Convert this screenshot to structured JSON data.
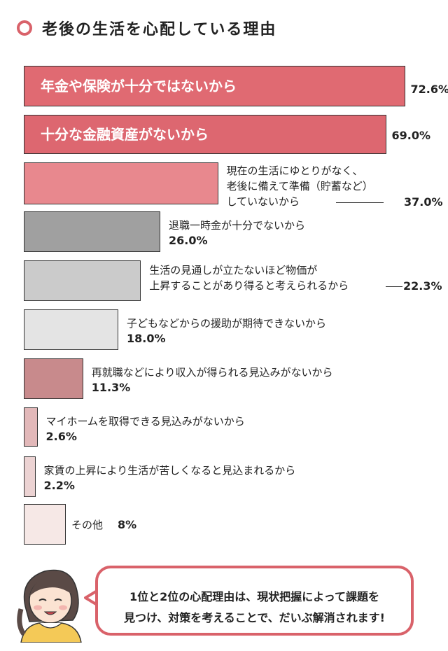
{
  "title": "老後の生活を心配している理由",
  "colors": {
    "accent": "#d9626a",
    "bar_dark_red": "#e06a72",
    "bar_red": "#dd6770",
    "bar_salmon": "#e8888e",
    "bar_dark_gray": "#a0a0a0",
    "bar_mid_gray": "#cbcbcb",
    "bar_light_gray": "#e4e4e4",
    "bar_dusty_rose": "#c88a8c",
    "bar_pale_rose": "#e2b8b9",
    "bar_very_pale_rose": "#ecd3d3",
    "bar_blush": "#f6e8e6"
  },
  "chart_data": {
    "type": "bar",
    "orientation": "horizontal",
    "unit": "%",
    "categories": [
      "年金や保険が十分ではないから",
      "十分な金融資産がないから",
      "現在の生活にゆとりがなく、老後に備えて準備（貯蓄など）していないから",
      "退職一時金が十分でないから",
      "生活の見通しが立たないほど物価が上昇することがあり得ると考えられるから",
      "子どもなどからの援助が期待できないから",
      "再就職などにより収入が得られる見込みがないから",
      "マイホームを取得できる見込みがないから",
      "家賃の上昇により生活が苦しくなると見込まれるから",
      "その他"
    ],
    "values": [
      72.6,
      69.0,
      37.0,
      26.0,
      22.3,
      18.0,
      11.3,
      2.6,
      2.2,
      8
    ],
    "value_labels": [
      "72.6%",
      "69.0%",
      "37.0%",
      "26.0%",
      "22.3%",
      "18.0%",
      "11.3%",
      "2.6%",
      "2.2%",
      "8%"
    ],
    "label_lines": [
      [
        "年金や保険が十分ではないから"
      ],
      [
        "十分な金融資産がないから"
      ],
      [
        "現在の生活にゆとりがなく、",
        "老後に備えて準備（貯蓄など）",
        "していないから"
      ],
      [
        "退職一時金が十分でないから"
      ],
      [
        "生活の見通しが立たないほど物価が",
        "上昇することがあり得ると考えられるから"
      ],
      [
        "子どもなどからの援助が期待できないから"
      ],
      [
        "再就職などにより収入が得られる見込みがないから"
      ],
      [
        "マイホームを取得できる見込みがないから"
      ],
      [
        "家賃の上昇により生活が苦しくなると見込まれるから"
      ],
      [
        "その他"
      ]
    ],
    "bar_colors": [
      "#e06a72",
      "#dd6770",
      "#e8888e",
      "#a0a0a0",
      "#cbcbcb",
      "#e4e4e4",
      "#c88a8c",
      "#e2b8b9",
      "#ecd3d3",
      "#f6e8e6"
    ],
    "xlim": [
      0,
      75
    ]
  },
  "speech": {
    "line1": "1位と2位の心配理由は、現状把握によって課題を",
    "line2": "見つけ、対策を考えることで、だいぶ解消されます!"
  }
}
